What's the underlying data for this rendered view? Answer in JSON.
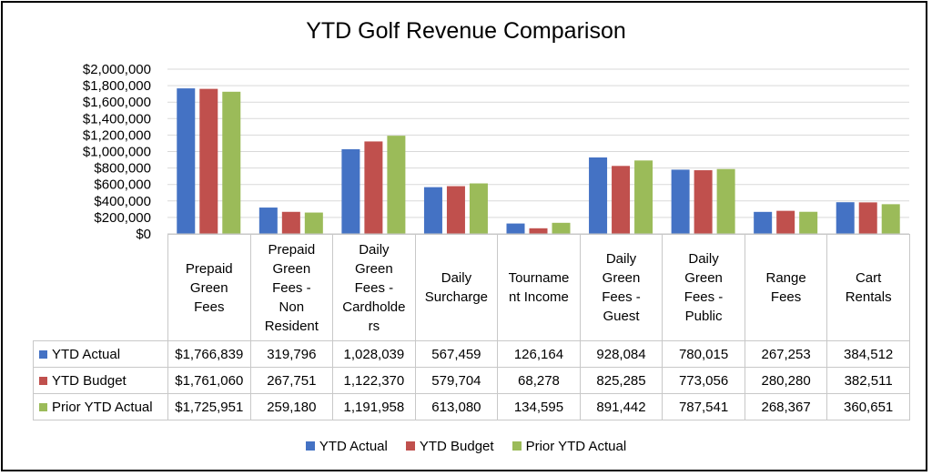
{
  "chart_data": {
    "type": "bar",
    "title": "YTD Golf Revenue Comparison",
    "categories": [
      [
        "Prepaid",
        "Green",
        "Fees"
      ],
      [
        "Prepaid",
        "Green",
        "Fees -",
        "Non",
        "Resident"
      ],
      [
        "Daily",
        "Green",
        "Fees -",
        "Cardholde",
        "rs"
      ],
      [
        "Daily",
        "Surcharge"
      ],
      [
        "Tourname",
        "nt Income"
      ],
      [
        "Daily",
        "Green",
        "Fees -",
        "Guest"
      ],
      [
        "Daily",
        "Green",
        "Fees -",
        "Public"
      ],
      [
        "Range",
        "Fees"
      ],
      [
        "Cart",
        "Rentals"
      ]
    ],
    "series": [
      {
        "name": "YTD Actual",
        "color": "#4472C4",
        "values": [
          1766839,
          319796,
          1028039,
          567459,
          126164,
          928084,
          780015,
          267253,
          384512
        ],
        "labels": [
          "$1,766,839",
          "319,796",
          "1,028,039",
          "567,459",
          "126,164",
          "928,084",
          "780,015",
          "267,253",
          "384,512"
        ]
      },
      {
        "name": "YTD Budget",
        "color": "#C0504D",
        "values": [
          1761060,
          267751,
          1122370,
          579704,
          68278,
          825285,
          773056,
          280280,
          382511
        ],
        "labels": [
          "$1,761,060",
          "267,751",
          "1,122,370",
          "579,704",
          "68,278",
          "825,285",
          "773,056",
          "280,280",
          "382,511"
        ]
      },
      {
        "name": "Prior YTD Actual",
        "color": "#9BBB59",
        "values": [
          1725951,
          259180,
          1191958,
          613080,
          134595,
          891442,
          787541,
          268367,
          360651
        ],
        "labels": [
          "$1,725,951",
          "259,180",
          "1,191,958",
          "613,080",
          "134,595",
          "891,442",
          "787,541",
          "268,367",
          "360,651"
        ]
      }
    ],
    "ylim": [
      0,
      2000000
    ],
    "yticks": [
      0,
      200000,
      400000,
      600000,
      800000,
      1000000,
      1200000,
      1400000,
      1600000,
      1800000,
      2000000
    ],
    "yticklabels": [
      "$0",
      "$200,000",
      "$400,000",
      "$600,000",
      "$800,000",
      "$1,000,000",
      "$1,200,000",
      "$1,400,000",
      "$1,600,000",
      "$1,800,000",
      "$2,000,000"
    ],
    "grid": true,
    "legend_position": "bottom"
  }
}
